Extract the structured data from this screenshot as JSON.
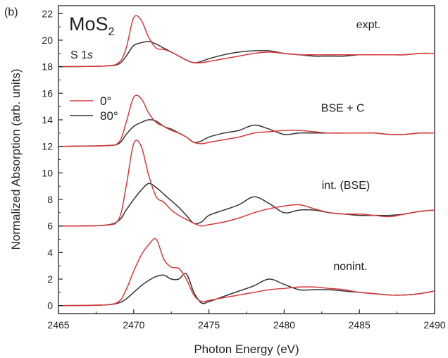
{
  "chart_data": {
    "type": "line",
    "panel_label": "(b)",
    "title_main": "MoS",
    "title_sub": "2",
    "subtitle_main": "S 1",
    "subtitle_italic": "s",
    "xlabel": "Photon Energy (eV)",
    "ylabel": "Normalized Absorption (arb. units)",
    "xlim": [
      2465,
      2490
    ],
    "ylim": [
      -0.6,
      22.6
    ],
    "xticks": [
      "2465",
      "2470",
      "2475",
      "2480",
      "2485",
      "2490"
    ],
    "yticks": [
      "0",
      "2",
      "4",
      "6",
      "8",
      "10",
      "12",
      "14",
      "16",
      "18",
      "20",
      "22"
    ],
    "grid": false,
    "legend": {
      "placement": "upper-left",
      "entries": [
        {
          "name": "0°",
          "color": "#d9383a"
        },
        {
          "name": "80°",
          "color": "#333333"
        }
      ]
    },
    "colors": {
      "red": "#d9383a",
      "black": "#333333"
    },
    "x": [
      2465,
      2468,
      2469,
      2469.5,
      2470,
      2470.5,
      2471,
      2471.5,
      2472,
      2472.5,
      2473,
      2473.5,
      2474,
      2474.5,
      2475,
      2476,
      2477,
      2478,
      2479,
      2480,
      2481,
      2482,
      2483,
      2484,
      2485,
      2486,
      2487,
      2488,
      2489,
      2490
    ],
    "groups": [
      {
        "label": "expt.",
        "series": [
          {
            "angle": "0°",
            "values": [
              18.0,
              18.05,
              18.3,
              19.4,
              21.7,
              21.5,
              20.2,
              19.4,
              19.3,
              19.1,
              18.8,
              18.5,
              18.3,
              18.3,
              18.4,
              18.6,
              18.8,
              19.0,
              19.1,
              19.0,
              18.9,
              18.9,
              18.9,
              18.9,
              18.9,
              18.9,
              18.9,
              18.9,
              19.0,
              19.0
            ]
          },
          {
            "angle": "80°",
            "values": [
              18.0,
              18.05,
              18.2,
              18.8,
              19.6,
              19.8,
              19.9,
              19.7,
              19.4,
              19.1,
              18.8,
              18.5,
              18.3,
              18.4,
              18.6,
              18.9,
              19.1,
              19.2,
              19.2,
              19.0,
              18.9,
              18.8,
              18.8,
              18.8,
              18.9,
              18.9,
              18.9,
              18.9,
              19.0,
              19.0
            ]
          }
        ]
      },
      {
        "label": "BSE + C",
        "series": [
          {
            "angle": "0°",
            "values": [
              12.0,
              12.05,
              12.3,
              13.8,
              15.7,
              15.6,
              14.5,
              13.8,
              13.5,
              13.2,
              13.0,
              12.7,
              12.3,
              12.2,
              12.3,
              12.5,
              12.7,
              13.0,
              13.1,
              13.2,
              13.2,
              13.1,
              13.0,
              13.0,
              13.0,
              13.0,
              12.9,
              12.9,
              13.0,
              13.0
            ]
          },
          {
            "angle": "80°",
            "values": [
              12.0,
              12.05,
              12.2,
              12.9,
              13.5,
              13.8,
              14.0,
              13.9,
              13.5,
              13.3,
              13.0,
              12.7,
              12.3,
              12.4,
              12.7,
              13.0,
              13.2,
              13.6,
              13.3,
              12.9,
              13.0,
              13.0,
              13.0,
              13.0,
              13.0,
              13.0,
              12.9,
              12.9,
              13.0,
              13.0
            ]
          }
        ]
      },
      {
        "label": "int. (BSE)",
        "series": [
          {
            "angle": "0°",
            "values": [
              6.0,
              6.05,
              6.5,
              9.0,
              12.2,
              12.0,
              9.8,
              8.2,
              7.8,
              7.2,
              6.8,
              6.5,
              6.2,
              6.0,
              6.1,
              6.3,
              6.6,
              7.0,
              7.3,
              7.5,
              7.6,
              7.3,
              7.0,
              6.9,
              6.9,
              6.8,
              6.7,
              6.9,
              7.1,
              7.2
            ]
          },
          {
            "angle": "80°",
            "values": [
              6.0,
              6.05,
              6.4,
              7.2,
              8.0,
              8.7,
              9.2,
              8.9,
              8.4,
              7.9,
              7.4,
              6.8,
              6.2,
              6.3,
              6.8,
              7.2,
              7.6,
              8.2,
              7.7,
              7.0,
              7.2,
              7.2,
              7.0,
              6.9,
              6.8,
              6.8,
              6.8,
              6.9,
              7.1,
              7.2
            ]
          }
        ]
      },
      {
        "label": "nonint.",
        "series": [
          {
            "angle": "0°",
            "values": [
              0.0,
              0.05,
              0.3,
              1.2,
              2.6,
              3.8,
              4.6,
              5.0,
              3.5,
              2.9,
              2.8,
              2.0,
              0.8,
              0.3,
              0.4,
              0.6,
              0.8,
              1.0,
              1.2,
              1.3,
              1.4,
              1.4,
              1.3,
              1.2,
              1.0,
              0.9,
              0.8,
              0.8,
              0.9,
              1.1
            ]
          },
          {
            "angle": "80°",
            "values": [
              0.0,
              0.05,
              0.2,
              0.5,
              1.0,
              1.5,
              1.9,
              2.2,
              2.3,
              2.0,
              2.0,
              2.4,
              1.0,
              0.2,
              0.3,
              0.7,
              1.1,
              1.5,
              2.0,
              1.6,
              1.2,
              1.2,
              1.2,
              1.1,
              1.0,
              0.9,
              0.8,
              0.8,
              0.9,
              1.1
            ]
          }
        ]
      }
    ]
  }
}
